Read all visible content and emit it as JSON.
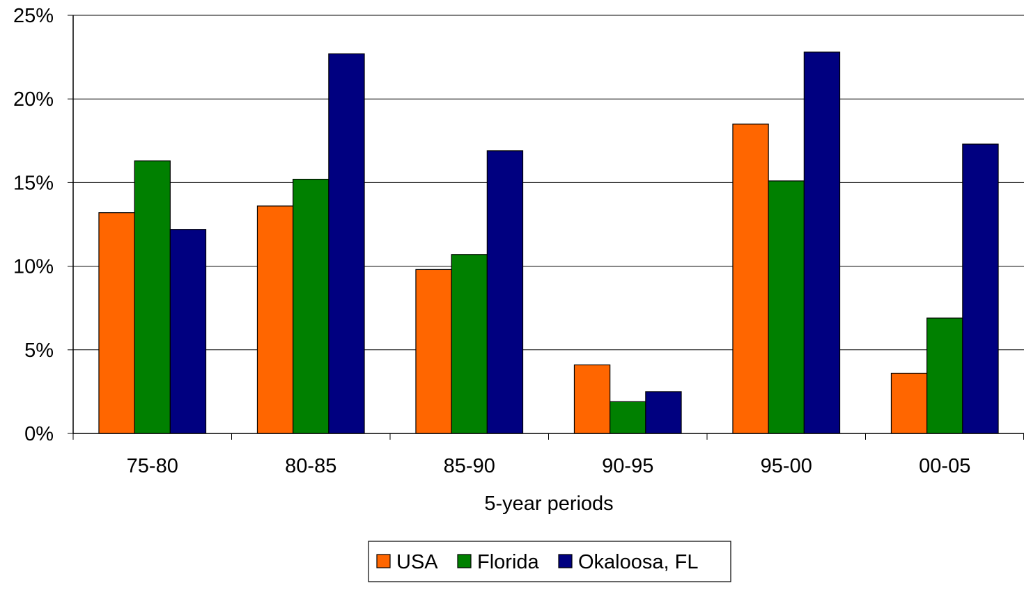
{
  "chart_data": {
    "type": "bar",
    "title": "",
    "xlabel": "5-year periods",
    "ylabel": "",
    "categories": [
      "75-80",
      "80-85",
      "85-90",
      "90-95",
      "95-00",
      "00-05"
    ],
    "series": [
      {
        "name": "USA",
        "color": "#ff6600",
        "values": [
          13.2,
          13.6,
          9.8,
          4.1,
          18.5,
          3.6
        ]
      },
      {
        "name": "Florida",
        "color": "#008000",
        "values": [
          16.3,
          15.2,
          10.7,
          1.9,
          15.1,
          6.9
        ]
      },
      {
        "name": "Okaloosa, FL",
        "color": "#000080",
        "values": [
          12.2,
          22.7,
          16.9,
          2.5,
          22.8,
          17.3
        ]
      }
    ],
    "ylim": [
      0,
      25
    ],
    "yticks": [
      0,
      5,
      10,
      15,
      20,
      25
    ],
    "ytick_labels": [
      "0%",
      "5%",
      "10%",
      "15%",
      "20%",
      "25%"
    ],
    "grid": true,
    "legend_position": "bottom"
  }
}
